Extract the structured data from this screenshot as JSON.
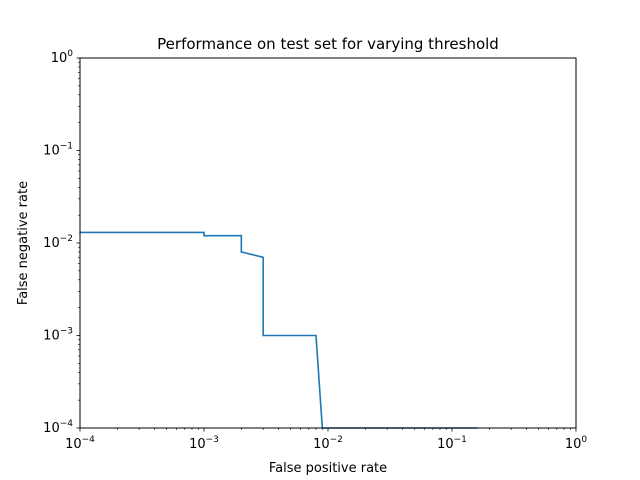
{
  "chart_data": {
    "type": "line",
    "title": "Performance on test set for varying threshold",
    "xlabel": "False positive rate",
    "ylabel": "False negative rate",
    "xscale": "log",
    "yscale": "log",
    "xlim": [
      0.0001,
      1
    ],
    "ylim": [
      0.0001,
      1
    ],
    "grid": false,
    "legend": "none",
    "line_color": "#1f77b4",
    "x_major_ticks": [
      {
        "base": "10",
        "exp": "−4"
      },
      {
        "base": "10",
        "exp": "−3"
      },
      {
        "base": "10",
        "exp": "−2"
      },
      {
        "base": "10",
        "exp": "−1"
      },
      {
        "base": "10",
        "exp": "0"
      }
    ],
    "y_major_ticks": [
      {
        "base": "10",
        "exp": "−4"
      },
      {
        "base": "10",
        "exp": "−3"
      },
      {
        "base": "10",
        "exp": "−2"
      },
      {
        "base": "10",
        "exp": "−1"
      },
      {
        "base": "10",
        "exp": "0"
      }
    ],
    "series": [
      {
        "x": [
          0.0001,
          0.001,
          0.001,
          0.002,
          0.002,
          0.003,
          0.003,
          0.008,
          0.009,
          0.16
        ],
        "y": [
          0.013,
          0.013,
          0.012,
          0.012,
          0.008,
          0.007,
          0.001,
          0.001,
          0.0001,
          0.0001
        ]
      }
    ]
  }
}
